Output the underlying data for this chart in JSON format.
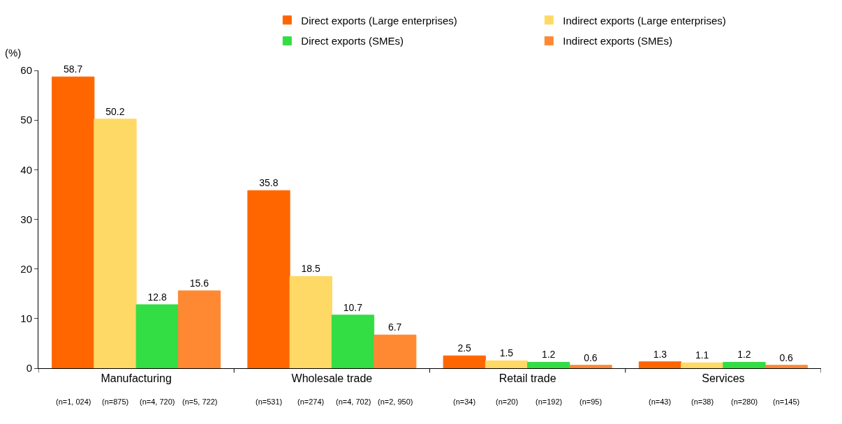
{
  "chart_data": {
    "type": "bar",
    "ylabel": "(%)",
    "categories": [
      "Manufacturing",
      "Wholesale trade",
      "Retail trade",
      "Services"
    ],
    "series": [
      {
        "name": "Direct exports (Large enterprises)",
        "color": "#ff6600",
        "values": [
          58.7,
          35.8,
          2.5,
          1.3
        ]
      },
      {
        "name": "Indirect exports (Large enterprises)",
        "color": "#ffd966",
        "values": [
          50.2,
          18.5,
          1.5,
          1.1
        ]
      },
      {
        "name": "Direct exports (SMEs)",
        "color": "#33dd44",
        "values": [
          12.8,
          10.7,
          1.2,
          1.2
        ]
      },
      {
        "name": "Indirect exports (SMEs)",
        "color": "#ff8833",
        "values": [
          15.6,
          6.7,
          0.6,
          0.6
        ]
      }
    ],
    "annotations": [
      "(n=1, 024)",
      "(n=875)",
      "(n=4, 720)",
      "(n=5, 722)",
      "(n=531)",
      "(n=274)",
      "(n=4, 702)",
      "(n=2, 950)",
      "(n=34)",
      "(n=20)",
      "(n=192)",
      "(n=95)",
      "(n=43)",
      "(n=38)",
      "(n=280)",
      "(n=145)"
    ],
    "ylim": [
      0,
      60
    ],
    "yticks": [
      0,
      10,
      20,
      30,
      40,
      50,
      60
    ],
    "data_labels": true,
    "legend": "top"
  }
}
